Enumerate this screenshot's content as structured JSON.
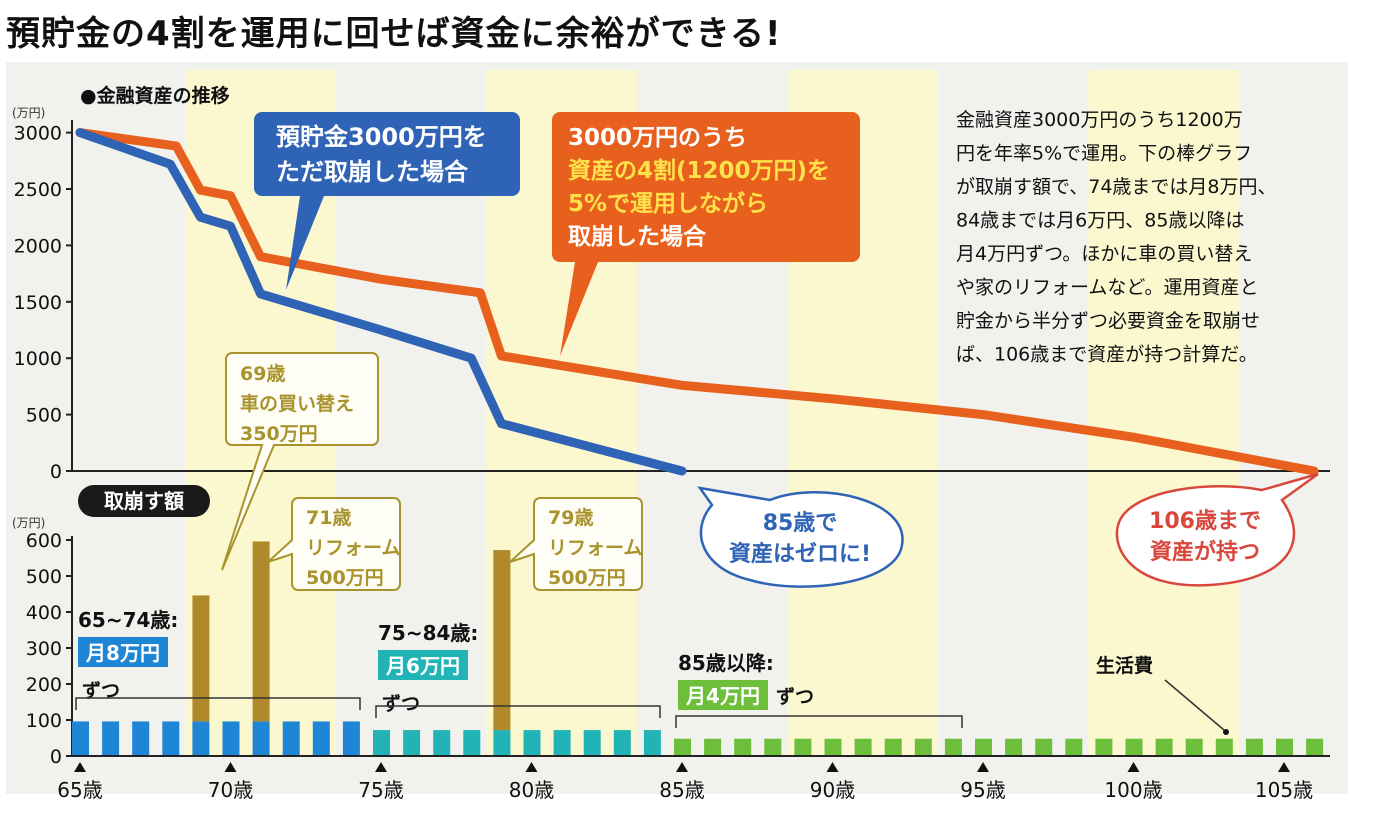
{
  "title": "預貯金の4割を運用に回せば資金に余裕ができる!",
  "colors": {
    "background_panel": "#f1f1ee",
    "stripe": "#fbf8d0",
    "orange": "#e8601e",
    "blue": "#2f63b5",
    "bar_blue": "#1f86d6",
    "bar_teal": "#22b3b6",
    "bar_green": "#6dbf3b",
    "bar_gold": "#b08a2a",
    "olive": "#a8932c",
    "red": "#d8473c"
  },
  "chart_data": [
    {
      "type": "line",
      "title": "●金融資産の推移",
      "ylabel": "(万円)",
      "ylim": [
        0,
        3000
      ],
      "yticks": [
        0,
        500,
        1000,
        1500,
        2000,
        2500,
        3000
      ],
      "series": [
        {
          "name": "預貯金3000万円を\nただ取崩した場合",
          "color": "blue",
          "points": [
            [
              65,
              3000
            ],
            [
              68,
              2720
            ],
            [
              69,
              2250
            ],
            [
              70,
              2170
            ],
            [
              71,
              1570
            ],
            [
              75,
              1250
            ],
            [
              78,
              1000
            ],
            [
              79,
              420
            ],
            [
              85,
              0
            ]
          ]
        },
        {
          "name": "3000万円のうち\n資産の4割(1200万円)を\n5%で運用しながら\n取崩した場合",
          "color": "orange",
          "points": [
            [
              65,
              3000
            ],
            [
              68.2,
              2880
            ],
            [
              69,
              2490
            ],
            [
              70,
              2440
            ],
            [
              71,
              1900
            ],
            [
              75,
              1700
            ],
            [
              78.3,
              1580
            ],
            [
              79,
              1020
            ],
            [
              85,
              760
            ],
            [
              90,
              640
            ],
            [
              95,
              500
            ],
            [
              100,
              300
            ],
            [
              106,
              0
            ]
          ]
        }
      ]
    },
    {
      "type": "bar",
      "title": "取崩す額",
      "ylabel": "(万円)",
      "ylim": [
        0,
        600
      ],
      "yticks": [
        0,
        100,
        200,
        300,
        400,
        500,
        600
      ],
      "x_tick_values": [
        65,
        70,
        75,
        80,
        85,
        90,
        95,
        100,
        105
      ],
      "x_tick_labels": [
        "65歳",
        "70歳",
        "75歳",
        "80歳",
        "85歳",
        "90歳",
        "95歳",
        "100歳",
        "105歳"
      ],
      "living_expense": [
        {
          "from": 65,
          "to": 74,
          "value": 96
        },
        {
          "from": 75,
          "to": 84,
          "value": 72
        },
        {
          "from": 85,
          "to": 106,
          "value": 48
        }
      ],
      "special": [
        {
          "age": 69,
          "value": 350
        },
        {
          "age": 71,
          "value": 500
        },
        {
          "age": 79,
          "value": 500
        }
      ]
    }
  ],
  "annotations": {
    "note": "金融資産3000万円のうち1200万\n円を年率5%で運用。下の棒グラフ\nが取崩す額で、74歳までは月8万円、\n84歳までは月6万円、85歳以降は\n月4万円ずつ。ほかに車の買い替え\nや家のリフォームなど。運用資産と\n貯金から半分ずつ必要資金を取崩せ\nば、106歳まで資産が持つ計算だ。",
    "car": "69歳\n車の買い替え\n350万円",
    "reform1": "71歳\nリフォーム\n500万円",
    "reform2": "79歳\nリフォーム\n500万円",
    "zero": "85歳で\n資産はゼロに!",
    "lasts": "106歳まで\n資産が持つ",
    "period1_age": "65~74歳:",
    "period1_amount": "月8万円",
    "period1_suffix": "ずつ",
    "period2_age": "75~84歳:",
    "period2_amount": "月6万円",
    "period2_suffix": "ずつ",
    "period3_age": "85歳以降:",
    "period3_amount": "月4万円",
    "period3_suffix": "ずつ",
    "living_label": "生活費"
  }
}
